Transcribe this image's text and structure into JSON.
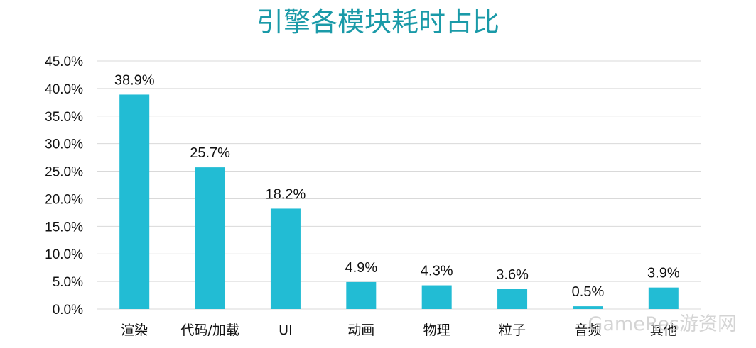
{
  "chart_data": {
    "type": "bar",
    "title": "引擎各模块耗时占比",
    "xlabel": "",
    "ylabel": "",
    "ylim": [
      0,
      45
    ],
    "yticks": [
      "0.0%",
      "5.0%",
      "10.0%",
      "15.0%",
      "20.0%",
      "25.0%",
      "30.0%",
      "35.0%",
      "40.0%",
      "45.0%"
    ],
    "categories": [
      "渲染",
      "代码/加载",
      "UI",
      "动画",
      "物理",
      "粒子",
      "音频",
      "其他"
    ],
    "values": [
      38.9,
      25.7,
      18.2,
      4.9,
      4.3,
      3.6,
      0.5,
      3.9
    ],
    "data_labels": [
      "38.9%",
      "25.7%",
      "18.2%",
      "4.9%",
      "4.3%",
      "3.6%",
      "0.5%",
      "3.9%"
    ],
    "grid": true,
    "legend": "none"
  },
  "colors": {
    "bar": "#22bcd4",
    "grid": "#d9d9d9",
    "title": "#1a9aa8"
  },
  "watermark": {
    "text": "GameRes游资网"
  }
}
